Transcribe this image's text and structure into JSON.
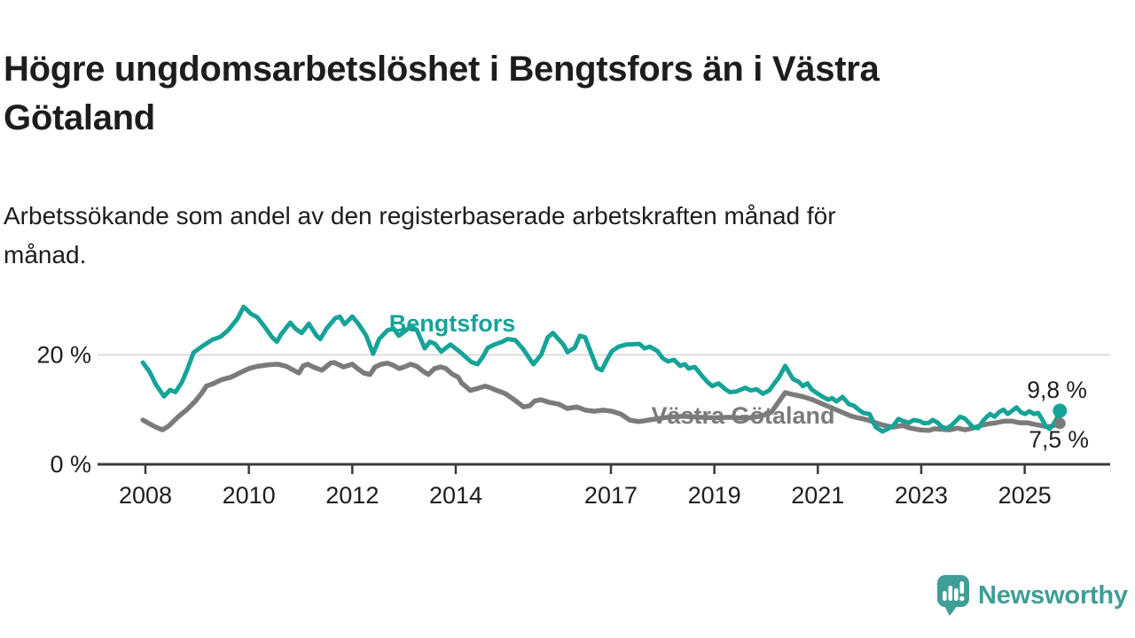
{
  "header": {
    "title_lines": [
      "Högre ungdomsarbetslöshet i Bengtsfors än i Västra",
      "Götaland"
    ],
    "subtitle_lines": [
      "Arbetssökande som andel av den registerbaserade arbetskraften månad för",
      "månad."
    ]
  },
  "colors": {
    "bengtsfors": "#16a398",
    "vastra_gotaland": "#7b7b7b",
    "axis": "#3a3a3a",
    "gridline": "#dcdcdc",
    "text": "#1d1d1b",
    "logo": "#3f9e96"
  },
  "footer": {
    "logo_text": "Newsworthy"
  },
  "chart_data": {
    "type": "line",
    "title": "Högre ungdomsarbetslöshet i Bengtsfors än i Västra Götaland",
    "subtitle": "Arbetssökande som andel av den registerbaserade arbetskraften månad för månad.",
    "xlabel": "",
    "ylabel": "",
    "unit": "%",
    "grid": "horizontal-20-only",
    "legend_position": "inline",
    "x_range": [
      2007.9,
      2025.75
    ],
    "y_range": [
      0,
      31
    ],
    "x_ticks": [
      2008,
      2010,
      2012,
      2014,
      2017,
      2019,
      2021,
      2023,
      2025
    ],
    "y_ticks": [
      {
        "value": 0,
        "label": "0 %"
      },
      {
        "value": 20,
        "label": "20 %"
      }
    ],
    "series": [
      {
        "id": "bengtsfors",
        "name": "Bengtsfors",
        "color": "#16a398",
        "end_value": 9.8,
        "end_label": "9,8 %",
        "points": [
          [
            2007.95,
            18.6
          ],
          [
            2008.08,
            16.9
          ],
          [
            2008.2,
            14.6
          ],
          [
            2008.36,
            12.4
          ],
          [
            2008.48,
            13.6
          ],
          [
            2008.58,
            13.2
          ],
          [
            2008.7,
            14.9
          ],
          [
            2008.8,
            17.1
          ],
          [
            2008.93,
            20.4
          ],
          [
            2009.1,
            21.6
          ],
          [
            2009.3,
            22.8
          ],
          [
            2009.45,
            23.3
          ],
          [
            2009.6,
            24.5
          ],
          [
            2009.78,
            26.6
          ],
          [
            2009.9,
            28.8
          ],
          [
            2010.04,
            27.5
          ],
          [
            2010.16,
            26.9
          ],
          [
            2010.3,
            25.2
          ],
          [
            2010.45,
            23.2
          ],
          [
            2010.54,
            22.4
          ],
          [
            2010.62,
            23.7
          ],
          [
            2010.8,
            25.9
          ],
          [
            2010.9,
            24.8
          ],
          [
            2011.02,
            24.0
          ],
          [
            2011.16,
            25.7
          ],
          [
            2011.31,
            23.5
          ],
          [
            2011.38,
            22.9
          ],
          [
            2011.5,
            24.8
          ],
          [
            2011.67,
            26.7
          ],
          [
            2011.76,
            27.0
          ],
          [
            2011.85,
            25.6
          ],
          [
            2012.0,
            27.0
          ],
          [
            2012.1,
            25.9
          ],
          [
            2012.27,
            23.5
          ],
          [
            2012.4,
            20.2
          ],
          [
            2012.52,
            22.9
          ],
          [
            2012.68,
            24.5
          ],
          [
            2012.8,
            24.8
          ],
          [
            2012.9,
            23.5
          ],
          [
            2013.08,
            24.8
          ],
          [
            2013.16,
            25.1
          ],
          [
            2013.25,
            24.5
          ],
          [
            2013.4,
            21.2
          ],
          [
            2013.5,
            22.4
          ],
          [
            2013.6,
            22.0
          ],
          [
            2013.72,
            20.6
          ],
          [
            2013.9,
            21.9
          ],
          [
            2014.1,
            20.4
          ],
          [
            2014.3,
            18.7
          ],
          [
            2014.42,
            18.3
          ],
          [
            2014.52,
            19.6
          ],
          [
            2014.62,
            21.3
          ],
          [
            2014.75,
            21.9
          ],
          [
            2014.9,
            22.4
          ],
          [
            2015.0,
            22.9
          ],
          [
            2015.15,
            22.7
          ],
          [
            2015.3,
            21.1
          ],
          [
            2015.5,
            18.3
          ],
          [
            2015.65,
            20.0
          ],
          [
            2015.78,
            23.2
          ],
          [
            2015.88,
            24.0
          ],
          [
            2016.08,
            21.9
          ],
          [
            2016.16,
            20.5
          ],
          [
            2016.3,
            21.3
          ],
          [
            2016.4,
            23.5
          ],
          [
            2016.5,
            23.2
          ],
          [
            2016.63,
            20.0
          ],
          [
            2016.73,
            17.6
          ],
          [
            2016.82,
            17.2
          ],
          [
            2016.94,
            19.4
          ],
          [
            2017.02,
            20.7
          ],
          [
            2017.15,
            21.5
          ],
          [
            2017.3,
            21.9
          ],
          [
            2017.55,
            22.0
          ],
          [
            2017.65,
            21.2
          ],
          [
            2017.75,
            21.5
          ],
          [
            2017.9,
            20.7
          ],
          [
            2018.0,
            19.4
          ],
          [
            2018.1,
            18.8
          ],
          [
            2018.22,
            19.1
          ],
          [
            2018.34,
            18.0
          ],
          [
            2018.43,
            18.3
          ],
          [
            2018.5,
            17.5
          ],
          [
            2018.62,
            17.8
          ],
          [
            2018.74,
            16.4
          ],
          [
            2018.86,
            15.1
          ],
          [
            2018.96,
            14.3
          ],
          [
            2019.08,
            14.8
          ],
          [
            2019.2,
            13.8
          ],
          [
            2019.3,
            13.2
          ],
          [
            2019.42,
            13.3
          ],
          [
            2019.6,
            14.0
          ],
          [
            2019.7,
            13.5
          ],
          [
            2019.82,
            13.7
          ],
          [
            2019.94,
            12.9
          ],
          [
            2020.06,
            13.5
          ],
          [
            2020.16,
            14.8
          ],
          [
            2020.25,
            15.9
          ],
          [
            2020.37,
            18.0
          ],
          [
            2020.45,
            16.7
          ],
          [
            2020.52,
            15.6
          ],
          [
            2020.63,
            15.1
          ],
          [
            2020.71,
            14.3
          ],
          [
            2020.8,
            14.8
          ],
          [
            2020.88,
            13.7
          ],
          [
            2020.97,
            13.1
          ],
          [
            2021.1,
            12.3
          ],
          [
            2021.2,
            11.8
          ],
          [
            2021.28,
            12.1
          ],
          [
            2021.36,
            11.5
          ],
          [
            2021.48,
            12.3
          ],
          [
            2021.6,
            11.0
          ],
          [
            2021.7,
            10.7
          ],
          [
            2021.8,
            9.9
          ],
          [
            2021.88,
            9.4
          ],
          [
            2022.0,
            9.2
          ],
          [
            2022.12,
            6.8
          ],
          [
            2022.25,
            6.0
          ],
          [
            2022.38,
            6.6
          ],
          [
            2022.46,
            7.1
          ],
          [
            2022.56,
            8.3
          ],
          [
            2022.65,
            7.9
          ],
          [
            2022.76,
            7.6
          ],
          [
            2022.85,
            8.1
          ],
          [
            2022.97,
            7.9
          ],
          [
            2023.05,
            7.5
          ],
          [
            2023.15,
            7.6
          ],
          [
            2023.22,
            8.1
          ],
          [
            2023.32,
            7.6
          ],
          [
            2023.4,
            6.8
          ],
          [
            2023.5,
            6.6
          ],
          [
            2023.58,
            7.1
          ],
          [
            2023.67,
            7.9
          ],
          [
            2023.75,
            8.7
          ],
          [
            2023.84,
            8.4
          ],
          [
            2023.92,
            7.6
          ],
          [
            2024.0,
            6.8
          ],
          [
            2024.1,
            6.6
          ],
          [
            2024.19,
            7.9
          ],
          [
            2024.27,
            8.7
          ],
          [
            2024.33,
            9.2
          ],
          [
            2024.42,
            8.7
          ],
          [
            2024.5,
            9.5
          ],
          [
            2024.59,
            10.0
          ],
          [
            2024.67,
            9.2
          ],
          [
            2024.76,
            9.8
          ],
          [
            2024.84,
            10.4
          ],
          [
            2024.93,
            9.5
          ],
          [
            2025.01,
            9.2
          ],
          [
            2025.09,
            9.7
          ],
          [
            2025.18,
            9.2
          ],
          [
            2025.26,
            9.4
          ],
          [
            2025.33,
            8.3
          ],
          [
            2025.4,
            7.1
          ],
          [
            2025.48,
            6.5
          ],
          [
            2025.55,
            7.2
          ],
          [
            2025.62,
            8.4
          ],
          [
            2025.68,
            9.8
          ]
        ]
      },
      {
        "id": "vastra-gotaland",
        "name": "Västra Götaland",
        "color": "#7b7b7b",
        "end_value": 7.5,
        "end_label": "7,5 %",
        "points": [
          [
            2007.95,
            8.1
          ],
          [
            2008.1,
            7.3
          ],
          [
            2008.2,
            6.8
          ],
          [
            2008.33,
            6.3
          ],
          [
            2008.45,
            7.0
          ],
          [
            2008.62,
            8.6
          ],
          [
            2008.79,
            9.9
          ],
          [
            2008.96,
            11.5
          ],
          [
            2009.08,
            12.9
          ],
          [
            2009.18,
            14.3
          ],
          [
            2009.3,
            14.7
          ],
          [
            2009.48,
            15.5
          ],
          [
            2009.65,
            15.9
          ],
          [
            2009.82,
            16.7
          ],
          [
            2010.0,
            17.5
          ],
          [
            2010.16,
            17.9
          ],
          [
            2010.38,
            18.2
          ],
          [
            2010.56,
            18.3
          ],
          [
            2010.73,
            17.9
          ],
          [
            2010.9,
            17.0
          ],
          [
            2010.97,
            16.7
          ],
          [
            2011.05,
            18.0
          ],
          [
            2011.14,
            18.3
          ],
          [
            2011.24,
            17.8
          ],
          [
            2011.41,
            17.2
          ],
          [
            2011.58,
            18.5
          ],
          [
            2011.65,
            18.6
          ],
          [
            2011.83,
            17.8
          ],
          [
            2012.0,
            18.3
          ],
          [
            2012.1,
            17.5
          ],
          [
            2012.22,
            16.7
          ],
          [
            2012.34,
            16.4
          ],
          [
            2012.44,
            17.8
          ],
          [
            2012.56,
            18.3
          ],
          [
            2012.68,
            18.5
          ],
          [
            2012.79,
            18.1
          ],
          [
            2012.91,
            17.5
          ],
          [
            2013.03,
            17.9
          ],
          [
            2013.13,
            18.3
          ],
          [
            2013.25,
            17.9
          ],
          [
            2013.37,
            17.0
          ],
          [
            2013.47,
            16.4
          ],
          [
            2013.59,
            17.5
          ],
          [
            2013.71,
            17.8
          ],
          [
            2013.81,
            17.5
          ],
          [
            2013.93,
            16.5
          ],
          [
            2014.05,
            15.9
          ],
          [
            2014.11,
            14.9
          ],
          [
            2014.28,
            13.5
          ],
          [
            2014.4,
            13.8
          ],
          [
            2014.57,
            14.3
          ],
          [
            2014.67,
            14.0
          ],
          [
            2014.79,
            13.5
          ],
          [
            2014.96,
            12.9
          ],
          [
            2015.13,
            11.8
          ],
          [
            2015.31,
            10.5
          ],
          [
            2015.43,
            10.7
          ],
          [
            2015.53,
            11.6
          ],
          [
            2015.65,
            11.8
          ],
          [
            2015.82,
            11.3
          ],
          [
            2015.99,
            11.0
          ],
          [
            2016.16,
            10.2
          ],
          [
            2016.34,
            10.5
          ],
          [
            2016.51,
            9.9
          ],
          [
            2016.68,
            9.7
          ],
          [
            2016.85,
            9.9
          ],
          [
            2017.02,
            9.7
          ],
          [
            2017.19,
            9.2
          ],
          [
            2017.36,
            8.1
          ],
          [
            2017.54,
            7.8
          ],
          [
            2017.8,
            8.2
          ],
          [
            2018.1,
            8.6
          ],
          [
            2018.4,
            8.8
          ],
          [
            2018.7,
            8.6
          ],
          [
            2019.0,
            8.5
          ],
          [
            2019.3,
            8.6
          ],
          [
            2019.6,
            8.4
          ],
          [
            2019.9,
            8.8
          ],
          [
            2020.1,
            9.5
          ],
          [
            2020.25,
            11.5
          ],
          [
            2020.37,
            13.1
          ],
          [
            2020.5,
            12.8
          ],
          [
            2020.7,
            12.4
          ],
          [
            2020.9,
            11.8
          ],
          [
            2021.1,
            11.0
          ],
          [
            2021.3,
            10.2
          ],
          [
            2021.5,
            9.4
          ],
          [
            2021.65,
            8.8
          ],
          [
            2021.77,
            8.5
          ],
          [
            2021.88,
            8.3
          ],
          [
            2022.0,
            8.0
          ],
          [
            2022.12,
            7.6
          ],
          [
            2022.29,
            7.1
          ],
          [
            2022.46,
            6.8
          ],
          [
            2022.63,
            7.1
          ],
          [
            2022.8,
            6.6
          ],
          [
            2022.97,
            6.3
          ],
          [
            2023.15,
            6.2
          ],
          [
            2023.25,
            6.5
          ],
          [
            2023.4,
            6.4
          ],
          [
            2023.55,
            6.3
          ],
          [
            2023.7,
            6.6
          ],
          [
            2023.85,
            6.3
          ],
          [
            2024.0,
            6.6
          ],
          [
            2024.15,
            7.1
          ],
          [
            2024.3,
            7.4
          ],
          [
            2024.45,
            7.6
          ],
          [
            2024.6,
            7.9
          ],
          [
            2024.75,
            7.9
          ],
          [
            2024.9,
            7.6
          ],
          [
            2025.05,
            7.6
          ],
          [
            2025.14,
            7.4
          ],
          [
            2025.31,
            7.1
          ],
          [
            2025.42,
            6.9
          ],
          [
            2025.5,
            6.9
          ],
          [
            2025.6,
            7.2
          ],
          [
            2025.68,
            7.5
          ]
        ]
      }
    ]
  }
}
